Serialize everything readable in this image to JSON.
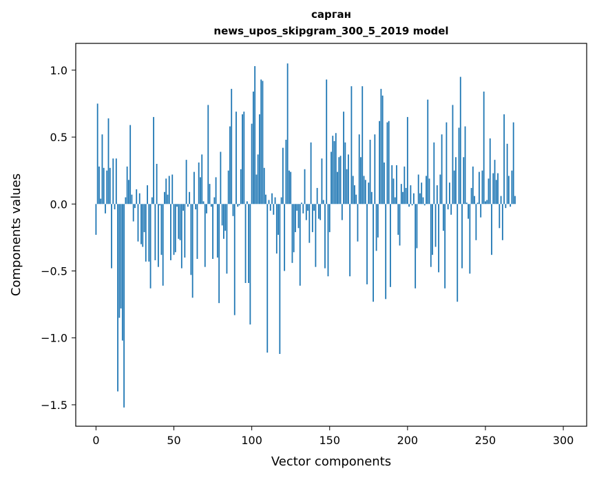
{
  "chart_data": {
    "type": "bar",
    "title": "сарган",
    "subtitle": "news_upos_skipgram_300_5_2019 model",
    "xlabel": "Vector components",
    "ylabel": "Components values",
    "xlim": [
      -13,
      315
    ],
    "ylim": [
      -1.66,
      1.2
    ],
    "xticks": [
      0,
      50,
      100,
      150,
      200,
      250,
      300
    ],
    "yticks": [
      -1.5,
      -1.0,
      -0.5,
      0.0,
      0.5,
      1.0
    ],
    "ytick_labels": [
      "−1.5",
      "−1.0",
      "−0.5",
      "0.0",
      "0.5",
      "1.0"
    ],
    "grid": false,
    "bar_color": "#1f77b4",
    "values": [
      -0.23,
      0.75,
      0.28,
      0.04,
      0.52,
      0.27,
      -0.07,
      0.25,
      0.64,
      0.27,
      -0.48,
      0.34,
      -0.04,
      0.34,
      -1.4,
      -0.85,
      -0.78,
      -1.02,
      -1.52,
      0.05,
      0.28,
      0.18,
      0.59,
      0.07,
      -0.13,
      -0.03,
      0.11,
      -0.28,
      0.08,
      -0.3,
      -0.32,
      -0.21,
      -0.43,
      0.14,
      -0.43,
      -0.63,
      0.05,
      0.65,
      -0.42,
      0.3,
      -0.47,
      -0.01,
      -0.38,
      -0.61,
      0.09,
      0.19,
      0.07,
      0.21,
      -0.42,
      0.22,
      -0.38,
      -0.36,
      -0.02,
      -0.26,
      -0.27,
      -0.48,
      -0.05,
      -0.4,
      0.33,
      -0.02,
      0.09,
      -0.53,
      -0.7,
      0.24,
      -0.04,
      -0.41,
      0.31,
      0.2,
      0.37,
      0.02,
      -0.47,
      -0.07,
      0.74,
      0.15,
      -0.02,
      -0.41,
      0.05,
      0.2,
      -0.4,
      -0.74,
      0.39,
      -0.16,
      -0.26,
      -0.2,
      -0.52,
      0.25,
      0.58,
      0.86,
      -0.09,
      -0.83,
      0.69,
      -0.02,
      -0.01,
      0.26,
      0.67,
      0.69,
      -0.59,
      0.02,
      -0.59,
      -0.9,
      0.6,
      0.84,
      1.03,
      0.22,
      0.37,
      0.67,
      0.93,
      0.92,
      0.27,
      0.07,
      -1.11,
      0.03,
      -0.05,
      0.08,
      -0.08,
      0.05,
      -0.37,
      -0.23,
      -1.12,
      0.05,
      0.42,
      -0.5,
      0.48,
      1.05,
      0.25,
      0.24,
      -0.44,
      -0.36,
      -0.21,
      -0.05,
      -0.18,
      -0.61,
      0.01,
      -0.07,
      0.26,
      -0.12,
      -0.05,
      -0.29,
      0.46,
      -0.21,
      -0.05,
      -0.47,
      0.12,
      -0.11,
      -0.12,
      0.34,
      0.03,
      -0.48,
      0.93,
      -0.54,
      -0.21,
      0.39,
      0.51,
      0.47,
      0.53,
      0.24,
      0.35,
      0.36,
      -0.12,
      0.69,
      0.46,
      0.26,
      0.37,
      -0.54,
      0.88,
      0.21,
      0.14,
      0.07,
      -0.28,
      0.52,
      0.35,
      0.88,
      0.21,
      0.18,
      -0.6,
      0.16,
      0.48,
      0.09,
      -0.73,
      0.52,
      -0.35,
      -0.25,
      0.62,
      0.86,
      0.81,
      0.31,
      -0.71,
      0.61,
      0.62,
      -0.62,
      0.29,
      0.19,
      0.05,
      0.29,
      -0.23,
      -0.31,
      0.15,
      0.09,
      0.28,
      0.12,
      0.65,
      -0.02,
      0.14,
      -0.01,
      0.08,
      -0.63,
      -0.33,
      0.22,
      0.08,
      0.16,
      0.05,
      -0.01,
      0.21,
      0.78,
      0.19,
      -0.47,
      -0.38,
      0.46,
      -0.32,
      0.14,
      -0.51,
      0.22,
      0.52,
      -0.2,
      -0.63,
      0.61,
      -0.04,
      0.16,
      -0.08,
      0.74,
      0.25,
      0.35,
      -0.73,
      0.57,
      0.95,
      -0.48,
      0.35,
      0.58,
      0.01,
      -0.11,
      -0.52,
      0.12,
      0.28,
      0.06,
      -0.27,
      0.01,
      0.24,
      -0.1,
      0.25,
      0.84,
      0.02,
      0.03,
      0.19,
      0.49,
      -0.38,
      0.23,
      0.33,
      0.18,
      0.23,
      -0.18,
      0.06,
      -0.27,
      0.67,
      -0.03,
      0.45,
      0.21,
      -0.02,
      0.25,
      0.61,
      0.06
    ]
  }
}
